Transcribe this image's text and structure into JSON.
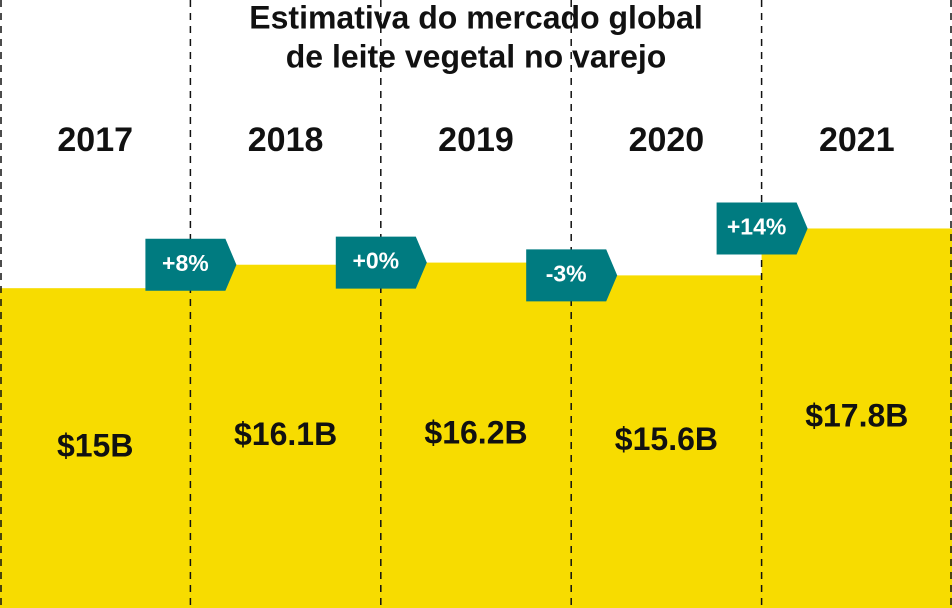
{
  "chart_data": {
    "type": "bar",
    "title": [
      "Estimativa do mercado global",
      "de leite vegetal no varejo"
    ],
    "categories": [
      "2017",
      "2018",
      "2019",
      "2020",
      "2021"
    ],
    "values": [
      15,
      16.1,
      16.2,
      15.6,
      17.8
    ],
    "value_labels": [
      "$15B",
      "$16.1B",
      "$16.2B",
      "$15.6B",
      "$17.8B"
    ],
    "annotations": [
      "+8%",
      "+0%",
      "-3%",
      "+14%"
    ],
    "color": "#f7dc00",
    "annotation_color": "#007b80",
    "ylim": [
      0,
      28
    ]
  }
}
